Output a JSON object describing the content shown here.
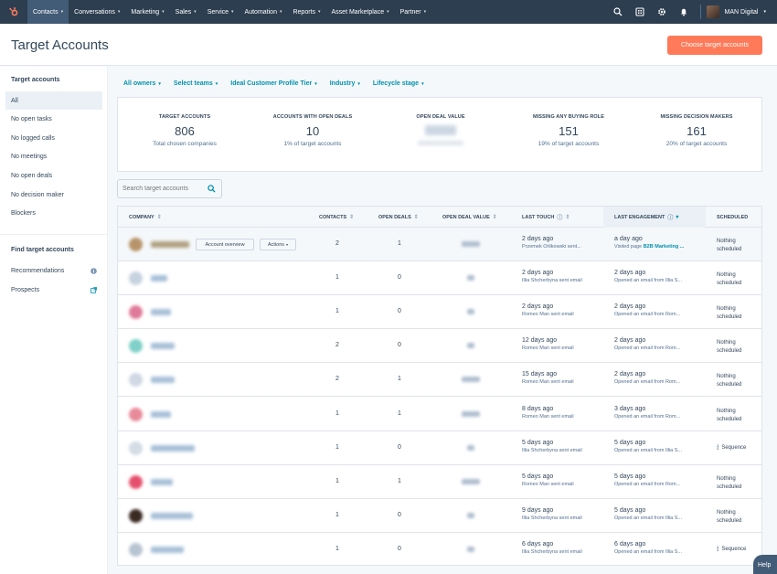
{
  "nav": {
    "items": [
      {
        "label": "Contacts",
        "active": true
      },
      {
        "label": "Conversations"
      },
      {
        "label": "Marketing"
      },
      {
        "label": "Sales"
      },
      {
        "label": "Service"
      },
      {
        "label": "Automation"
      },
      {
        "label": "Reports"
      },
      {
        "label": "Asset Marketplace"
      },
      {
        "label": "Partner"
      }
    ],
    "account_name": "MAN Digital",
    "icons": [
      "search-icon",
      "marketplace-icon",
      "settings-icon",
      "notifications-icon"
    ]
  },
  "header": {
    "title": "Target Accounts",
    "primary_button": "Choose target accounts"
  },
  "sidebar": {
    "section1": "Target accounts",
    "items": [
      {
        "label": "All",
        "selected": true
      },
      {
        "label": "No open tasks"
      },
      {
        "label": "No logged calls"
      },
      {
        "label": "No meetings"
      },
      {
        "label": "No open deals"
      },
      {
        "label": "No decision maker"
      },
      {
        "label": "Blockers"
      }
    ],
    "section2": "Find target accounts",
    "items2": [
      {
        "label": "Recommendations",
        "icon": "info-icon"
      },
      {
        "label": "Prospects",
        "icon": "external-link-icon"
      }
    ]
  },
  "filters": [
    {
      "label": "All owners"
    },
    {
      "label": "Select teams"
    },
    {
      "label": "Ideal Customer Profile Tier"
    },
    {
      "label": "Industry"
    },
    {
      "label": "Lifecycle stage"
    }
  ],
  "stats": [
    {
      "label": "TARGET ACCOUNTS",
      "value": "806",
      "sub": "Total chosen companies"
    },
    {
      "label": "ACCOUNTS WITH OPEN DEALS",
      "value": "10",
      "sub": "1% of target accounts"
    },
    {
      "label": "OPEN DEAL VALUE",
      "value": "",
      "sub": ""
    },
    {
      "label": "MISSING ANY BUYING ROLE",
      "value": "151",
      "sub": "19% of target accounts"
    },
    {
      "label": "MISSING DECISION MAKERS",
      "value": "161",
      "sub": "20% of target accounts"
    }
  ],
  "search": {
    "placeholder": "Search target accounts"
  },
  "table": {
    "columns": [
      "COMPANY",
      "CONTACTS",
      "OPEN DEALS",
      "OPEN DEAL VALUE",
      "LAST TOUCH",
      "LAST ENGAGEMENT",
      "SCHEDULED"
    ],
    "row_buttons": {
      "overview": "Account overview",
      "actions": "Actions"
    },
    "rows": [
      {
        "contacts": "2",
        "deals": "1",
        "touch": "2 days ago",
        "touch_by": "Przemek Orlikowski sent...",
        "eng": "a day ago",
        "eng_by": "Visited page ",
        "eng_link": "B2B Marketing ...",
        "sched": "Nothing",
        "sched2": "scheduled",
        "logo": "#b8946a",
        "name_w": 42,
        "val_w": 20
      },
      {
        "contacts": "1",
        "deals": "0",
        "touch": "2 days ago",
        "touch_by": "Illia Shcherbyna sent email",
        "eng": "2 days ago",
        "eng_by": "Opened an email from Illia S...",
        "eng_link": "",
        "sched": "Nothing",
        "sched2": "scheduled",
        "logo": "#c8d3e0",
        "name_w": 18,
        "val_w": 8
      },
      {
        "contacts": "1",
        "deals": "0",
        "touch": "2 days ago",
        "touch_by": "Romeo Man sent email",
        "eng": "2 days ago",
        "eng_by": "Opened an email from Rom...",
        "eng_link": "",
        "sched": "Nothing",
        "sched2": "scheduled",
        "logo": "#e07a9a",
        "name_w": 22,
        "val_w": 8
      },
      {
        "contacts": "2",
        "deals": "0",
        "touch": "12 days ago",
        "touch_by": "Romeo Man sent email",
        "eng": "2 days ago",
        "eng_by": "Opened an email from Rom...",
        "eng_link": "",
        "sched": "Nothing",
        "sched2": "scheduled",
        "logo": "#7fd0c8",
        "name_w": 26,
        "val_w": 8
      },
      {
        "contacts": "2",
        "deals": "1",
        "touch": "15 days ago",
        "touch_by": "Romeo Man sent email",
        "eng": "2 days ago",
        "eng_by": "Opened an email from Rom...",
        "eng_link": "",
        "sched": "Nothing",
        "sched2": "scheduled",
        "logo": "#d0d8e4",
        "name_w": 26,
        "val_w": 20
      },
      {
        "contacts": "1",
        "deals": "1",
        "touch": "8 days ago",
        "touch_by": "Romeo Man sent email",
        "eng": "3 days ago",
        "eng_by": "Opened an email from Rom...",
        "eng_link": "",
        "sched": "Nothing",
        "sched2": "scheduled",
        "logo": "#e88a9a",
        "name_w": 22,
        "val_w": 20
      },
      {
        "contacts": "1",
        "deals": "0",
        "touch": "5 days ago",
        "touch_by": "Illia Shcherbyna sent email",
        "eng": "5 days ago",
        "eng_by": "Opened an email from Illia S...",
        "eng_link": "",
        "sched": "Sequence",
        "sched2": "",
        "logo": "#d4dce6",
        "name_w": 48,
        "val_w": 8
      },
      {
        "contacts": "1",
        "deals": "1",
        "touch": "5 days ago",
        "touch_by": "Romeo Man sent email",
        "eng": "5 days ago",
        "eng_by": "Opened an email from Rom...",
        "eng_link": "",
        "sched": "Nothing",
        "sched2": "scheduled",
        "logo": "#e6506e",
        "name_w": 24,
        "val_w": 20
      },
      {
        "contacts": "1",
        "deals": "0",
        "touch": "9 days ago",
        "touch_by": "Illia Shcherbyna sent email",
        "eng": "5 days ago",
        "eng_by": "Opened an email from Illia S...",
        "eng_link": "",
        "sched": "Nothing",
        "sched2": "scheduled",
        "logo": "#3a2a22",
        "name_w": 46,
        "val_w": 8
      },
      {
        "contacts": "1",
        "deals": "0",
        "touch": "6 days ago",
        "touch_by": "Illia Shcherbyna sent email",
        "eng": "6 days ago",
        "eng_by": "Opened an email from Illia S...",
        "eng_link": "",
        "sched": "Sequence",
        "sched2": "",
        "logo": "#b8c4d2",
        "name_w": 36,
        "val_w": 8
      }
    ]
  },
  "help": {
    "label": "Help"
  },
  "colors": {
    "nav_bg": "#2d3e50",
    "accent": "#ff7a59",
    "link": "#0091ae"
  }
}
